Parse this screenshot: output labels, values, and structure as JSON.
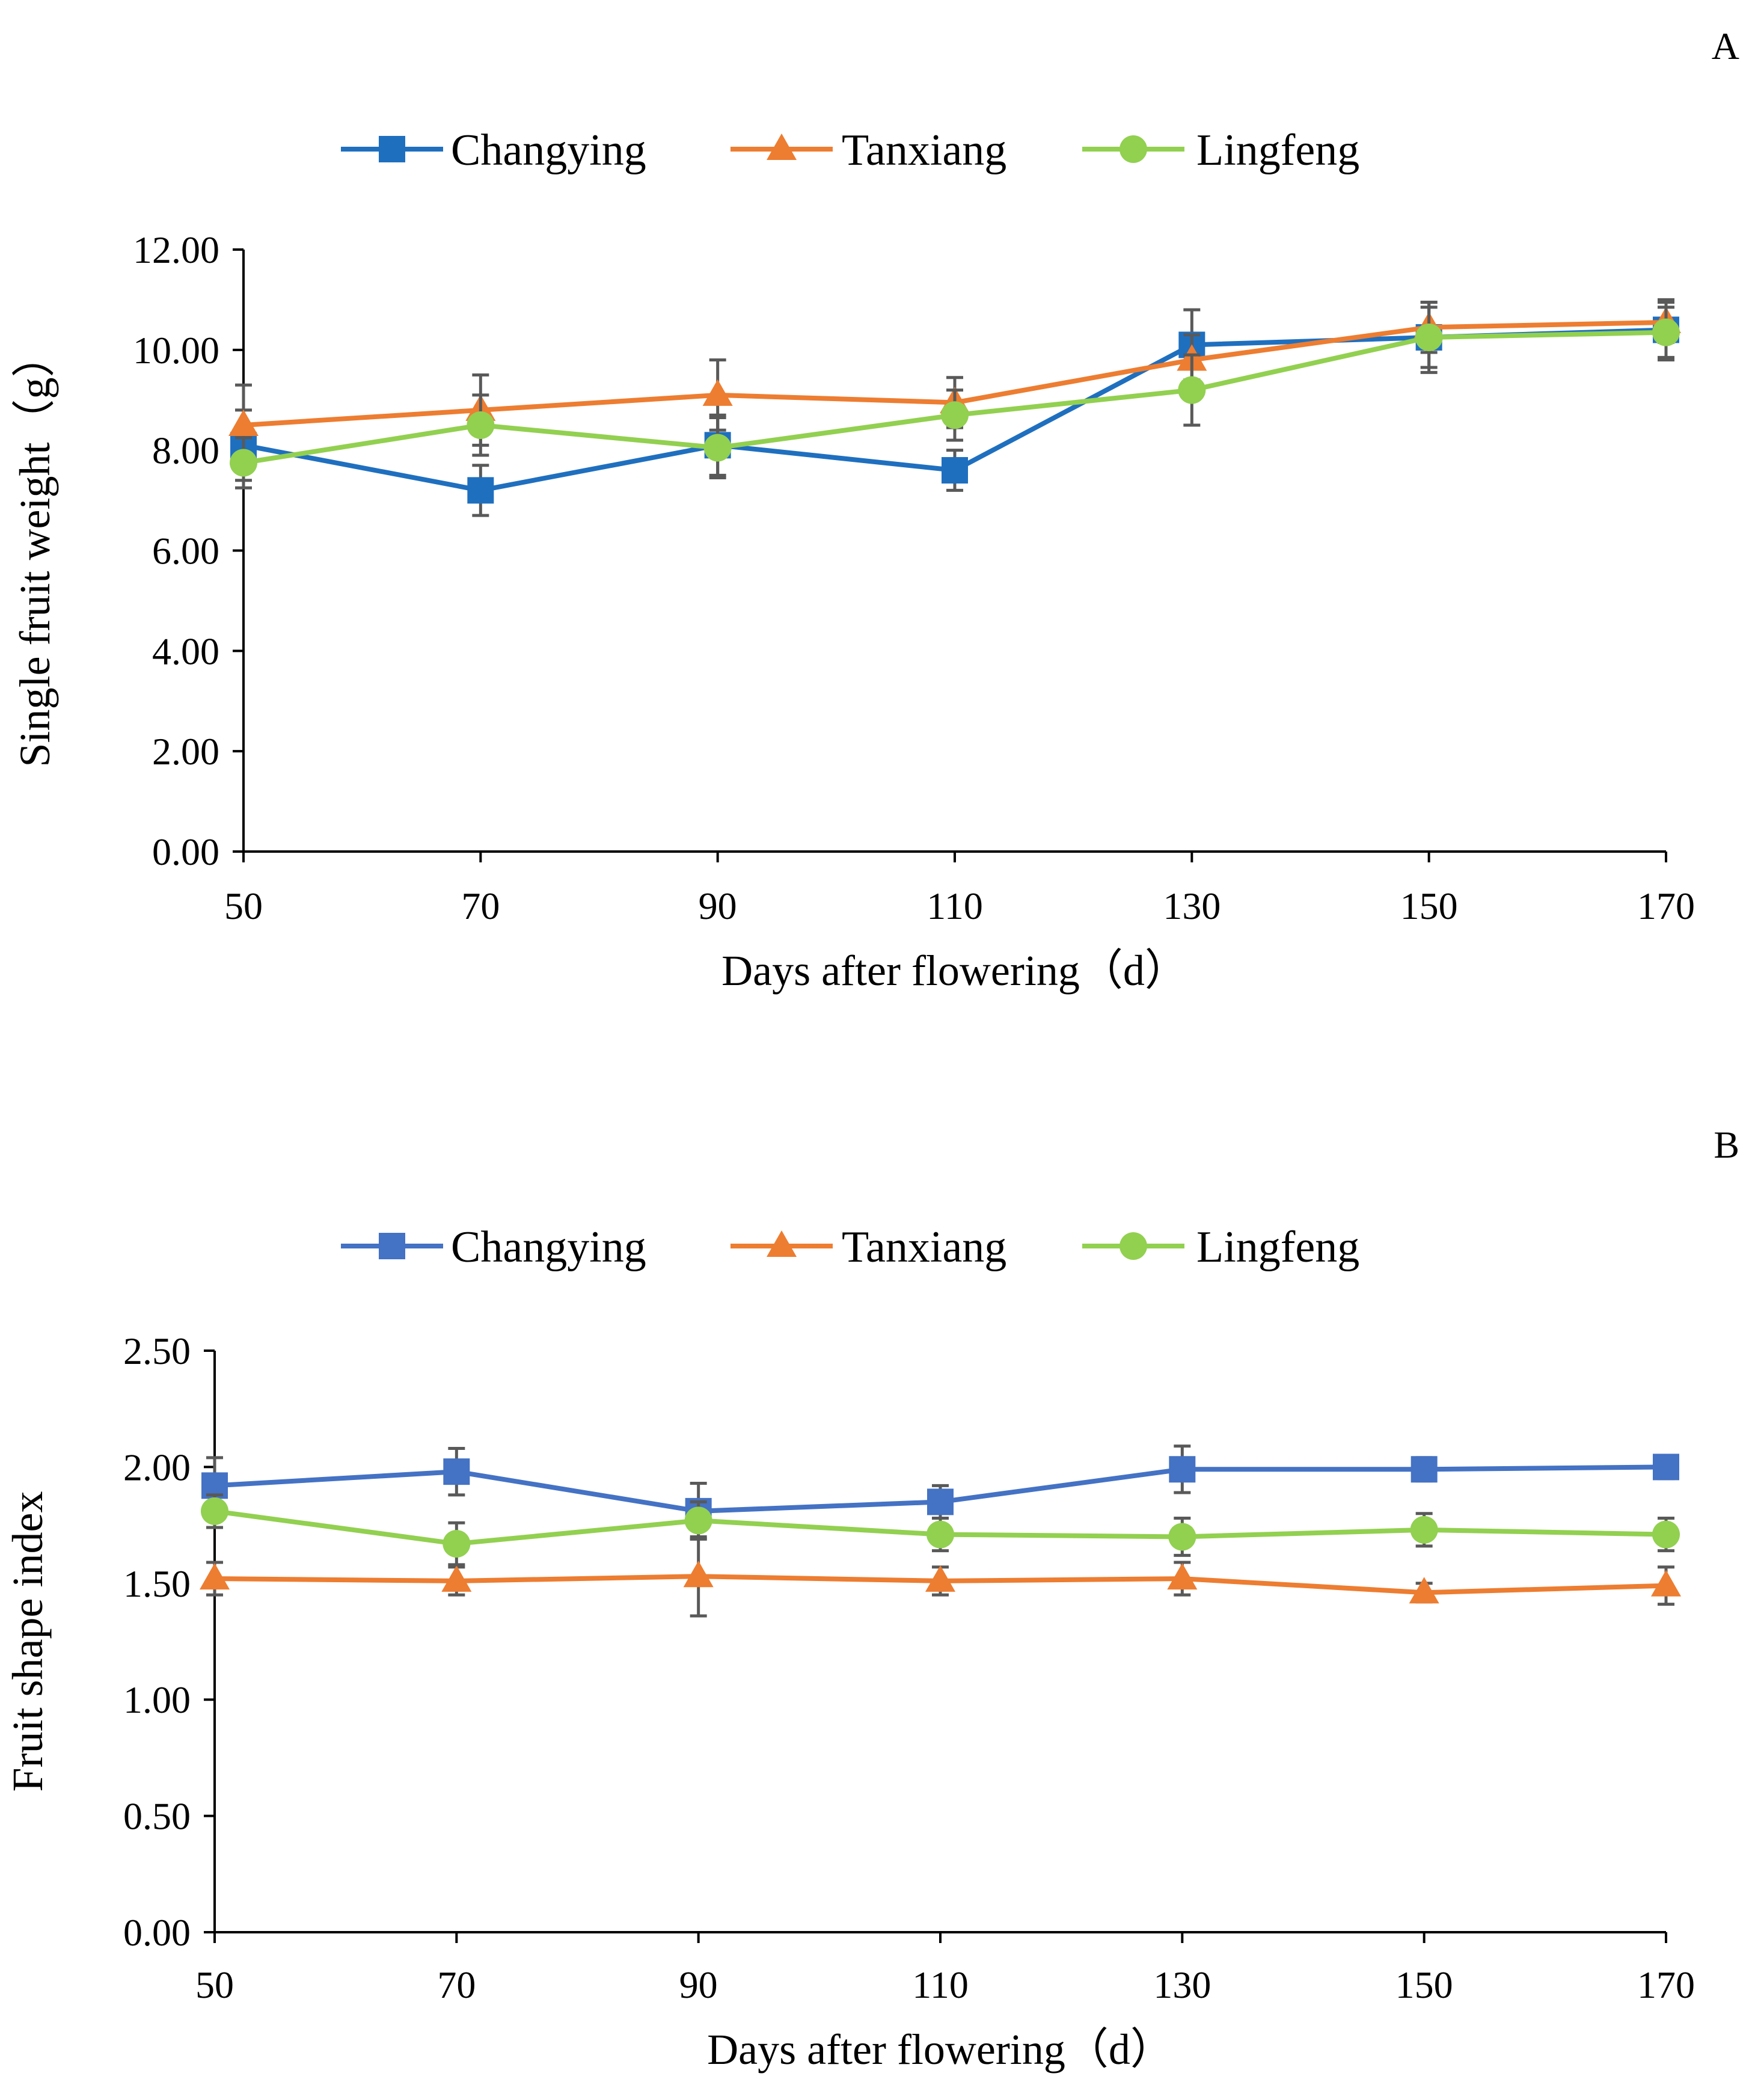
{
  "chart_data": [
    {
      "panel": "A",
      "type": "line",
      "ylabel": "Single fruit weight（g）",
      "xlabel": "Days after flowering（d）",
      "x": [
        50,
        70,
        90,
        110,
        130,
        150,
        170
      ],
      "x_tick_labels": [
        "50",
        "70",
        "90",
        "110",
        "130",
        "150",
        "170"
      ],
      "ylim": [
        0,
        12
      ],
      "y_ticks": [
        0,
        2,
        4,
        6,
        8,
        10,
        12
      ],
      "y_tick_labels": [
        "0.00",
        "2.00",
        "4.00",
        "6.00",
        "8.00",
        "10.00",
        "12.00"
      ],
      "grid": false,
      "legend_position": "top",
      "series": [
        {
          "name": "Changying",
          "color": "#1f6fbf",
          "marker": "square",
          "values": [
            8.1,
            7.2,
            8.1,
            7.6,
            10.1,
            10.25,
            10.4
          ],
          "errors": [
            0.7,
            0.5,
            0.6,
            0.4,
            0.7,
            0.7,
            0.6
          ]
        },
        {
          "name": "Tanxiang",
          "color": "#ed7d31",
          "marker": "triangle",
          "values": [
            8.5,
            8.8,
            9.1,
            8.95,
            9.8,
            10.45,
            10.55
          ],
          "errors": [
            0.8,
            0.7,
            0.7,
            0.5,
            0.5,
            0.5,
            0.4
          ]
        },
        {
          "name": "Lingfeng",
          "color": "#92d050",
          "marker": "circle",
          "values": [
            7.75,
            8.5,
            8.05,
            8.7,
            9.2,
            10.25,
            10.35
          ],
          "errors": [
            0.5,
            0.6,
            0.6,
            0.5,
            0.7,
            0.6,
            0.5
          ]
        }
      ]
    },
    {
      "panel": "B",
      "type": "line",
      "ylabel": "Fruit shape index",
      "xlabel": "Days after flowering（d）",
      "x": [
        50,
        70,
        90,
        110,
        130,
        150,
        170
      ],
      "x_tick_labels": [
        "50",
        "70",
        "90",
        "110",
        "130",
        "150",
        "170"
      ],
      "ylim": [
        0,
        2.5
      ],
      "y_ticks": [
        0,
        0.5,
        1,
        1.5,
        2,
        2.5
      ],
      "y_tick_labels": [
        "0.00",
        "0.50",
        "1.00",
        "1.50",
        "2.00",
        "2.50"
      ],
      "grid": false,
      "legend_position": "top",
      "series": [
        {
          "name": "Changying",
          "color": "#4472c4",
          "marker": "square",
          "values": [
            1.92,
            1.98,
            1.81,
            1.85,
            1.99,
            1.99,
            2.0
          ],
          "errors": [
            0.12,
            0.1,
            0.12,
            0.07,
            0.1,
            0.05,
            0.05
          ]
        },
        {
          "name": "Tanxiang",
          "color": "#ed7d31",
          "marker": "triangle",
          "values": [
            1.52,
            1.51,
            1.53,
            1.51,
            1.52,
            1.46,
            1.49
          ],
          "errors": [
            0.07,
            0.06,
            0.17,
            0.06,
            0.07,
            0.04,
            0.08
          ]
        },
        {
          "name": "Lingfeng",
          "color": "#92d050",
          "marker": "circle",
          "values": [
            1.81,
            1.67,
            1.77,
            1.71,
            1.7,
            1.73,
            1.71
          ],
          "errors": [
            0.07,
            0.09,
            0.08,
            0.07,
            0.08,
            0.07,
            0.07
          ]
        }
      ]
    }
  ]
}
